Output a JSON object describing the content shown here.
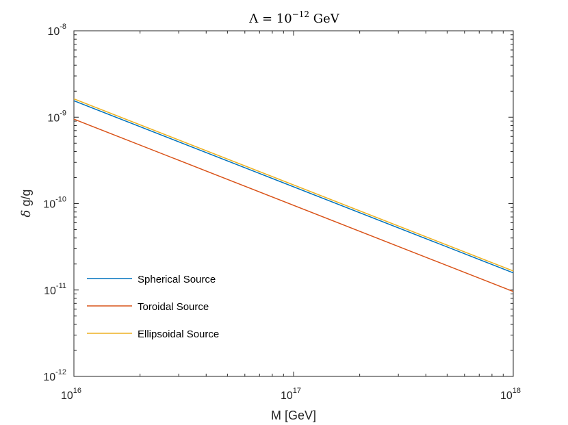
{
  "chart_data": {
    "type": "line",
    "title": "Λ = 10^{-12} GeV",
    "title_parts": {
      "main": "Λ = 10",
      "exp": "−12",
      "unit": " GeV"
    },
    "xlabel": "M [GeV]",
    "ylabel_parts": {
      "delta": "δ",
      "rest": " g/g"
    },
    "xscale": "log",
    "yscale": "log",
    "xlim": [
      1e+16,
      1e+18
    ],
    "ylim": [
      1e-12,
      1e-08
    ],
    "x_ticks": [
      {
        "base": "10",
        "exp": "16",
        "value": 1e+16
      },
      {
        "base": "10",
        "exp": "17",
        "value": 1e+17
      },
      {
        "base": "10",
        "exp": "18",
        "value": 1e+18
      }
    ],
    "y_ticks": [
      {
        "base": "10",
        "exp": "-12",
        "value": 1e-12
      },
      {
        "base": "10",
        "exp": "-11",
        "value": 1e-11
      },
      {
        "base": "10",
        "exp": "-10",
        "value": 1e-10
      },
      {
        "base": "10",
        "exp": "-9",
        "value": 1e-09
      },
      {
        "base": "10",
        "exp": "-8",
        "value": 1e-08
      }
    ],
    "grid": false,
    "legend_position": "bottom-left",
    "series": [
      {
        "name": "Spherical Source",
        "color": "#0072BD",
        "x": [
          1e+16,
          1e+18
        ],
        "y": [
          1.55e-09,
          1.58e-11
        ]
      },
      {
        "name": "Toroidal Source",
        "color": "#D95319",
        "x": [
          1e+16,
          1e+18
        ],
        "y": [
          9.5e-10,
          9.6e-12
        ]
      },
      {
        "name": "Ellipsoidal Source",
        "color": "#EDB120",
        "x": [
          1e+16,
          1e+18
        ],
        "y": [
          1.63e-09,
          1.66e-11
        ]
      }
    ]
  }
}
